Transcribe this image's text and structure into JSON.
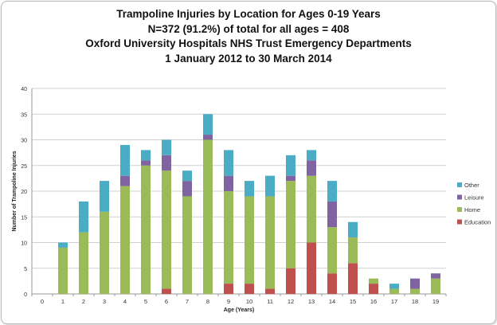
{
  "chart_data": {
    "type": "bar",
    "stacked": true,
    "title": [
      "Trampoline Injuries by Location for Ages 0-19 Years",
      "N=372 (91.2%) of total for all ages = 408",
      "Oxford University Hospitals NHS Trust Emergency Departments",
      "1 January 2012 to 30 March 2014"
    ],
    "xlabel": "Age (Years)",
    "ylabel": "Number of Trampoline Injuries",
    "ylim": [
      0,
      40
    ],
    "yticks": [
      0,
      5,
      10,
      15,
      20,
      25,
      30,
      35,
      40
    ],
    "grid": true,
    "legend": "right",
    "categories": [
      "0",
      "1",
      "2",
      "3",
      "4",
      "5",
      "6",
      "7",
      "8",
      "9",
      "10",
      "11",
      "12",
      "13",
      "14",
      "15",
      "16",
      "17",
      "18",
      "19"
    ],
    "series": [
      {
        "name": "Education",
        "color": "#c0504d",
        "values": [
          0,
          0,
          0,
          0,
          0,
          0,
          1,
          0,
          0,
          2,
          2,
          1,
          5,
          10,
          4,
          6,
          2,
          0,
          0,
          0
        ]
      },
      {
        "name": "Home",
        "color": "#9bbb59",
        "values": [
          0,
          9,
          12,
          16,
          21,
          25,
          23,
          19,
          30,
          18,
          17,
          18,
          17,
          13,
          9,
          5,
          1,
          1,
          1,
          3
        ]
      },
      {
        "name": "Leisure",
        "color": "#8064a2",
        "values": [
          0,
          0,
          0,
          0,
          2,
          1,
          3,
          3,
          1,
          3,
          0,
          0,
          1,
          3,
          5,
          0,
          0,
          0,
          2,
          1
        ]
      },
      {
        "name": "Other",
        "color": "#4bacc6",
        "values": [
          0,
          1,
          6,
          6,
          6,
          2,
          3,
          2,
          4,
          5,
          3,
          4,
          4,
          2,
          4,
          3,
          0,
          1,
          0,
          0
        ]
      }
    ]
  }
}
